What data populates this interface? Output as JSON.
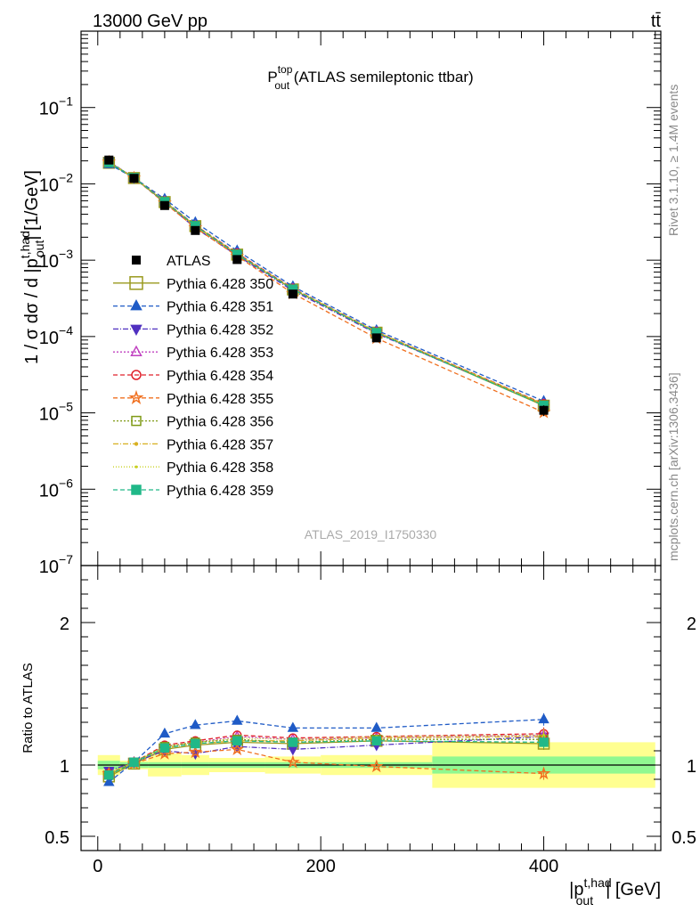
{
  "header": {
    "energy_label": "13000 GeV pp",
    "process_label": "tt̄"
  },
  "side_labels": {
    "rivet": "Rivet 3.1.10, ≥ 1.4M events",
    "mcplots": "mcplots.cern.ch [arXiv:1306.3436]"
  },
  "analysis_id": "ATLAS_2019_I1750330",
  "chart_data": [
    {
      "type": "scatter",
      "title": {
        "main": "P",
        "sup": "top",
        "sub": "out",
        "rest": " (ATLAS semileptonic ttbar)"
      },
      "ylabel": {
        "pre": "1 / σ dσ / d |p",
        "sup": "t,had",
        "sub": "out",
        "post": "| [1/GeV]"
      },
      "yscale": "log",
      "ylim": [
        1e-07,
        1
      ],
      "xlim": [
        -15,
        505
      ],
      "x_ticks": [
        0,
        200,
        400
      ],
      "y_tick_labels": [
        {
          "base": "10",
          "exp": "−1"
        },
        {
          "base": "10",
          "exp": "−2"
        },
        {
          "base": "10",
          "exp": "−3"
        },
        {
          "base": "10",
          "exp": "−4"
        },
        {
          "base": "10",
          "exp": "−5"
        },
        {
          "base": "10",
          "exp": "−6"
        },
        {
          "base": "10",
          "exp": "−7"
        }
      ],
      "y_tick_exponents": [
        -1,
        -2,
        -3,
        -4,
        -5,
        -6,
        -7
      ],
      "x": [
        10,
        32.5,
        60,
        87.5,
        125,
        175,
        250,
        400
      ],
      "bin_edges": [
        0,
        20,
        45,
        75,
        100,
        150,
        200,
        300,
        500
      ],
      "legend_position": "left-middle",
      "data": {
        "name": "ATLAS",
        "values": [
          0.0205,
          0.0118,
          0.0052,
          0.00245,
          0.00102,
          0.00036,
          9.6e-05,
          1.08e-05
        ],
        "err_stat": [
          0.03,
          0.02,
          0.02,
          0.02,
          0.02,
          0.02,
          0.02,
          0.06
        ],
        "err_total": [
          0.07,
          0.03,
          0.08,
          0.07,
          0.05,
          0.06,
          0.07,
          0.16
        ]
      },
      "series": [
        {
          "name": "Pythia 6.428 350",
          "color": "#9a9a1e",
          "marker": "square-open",
          "dash": "",
          "ratio": [
            0.92,
            1.01,
            1.11,
            1.14,
            1.16,
            1.15,
            1.17,
            1.15
          ]
        },
        {
          "name": "Pythia 6.428 351",
          "color": "#1f5bc6",
          "marker": "triangle-up",
          "dash": "5,3",
          "ratio": [
            0.88,
            1.02,
            1.22,
            1.28,
            1.31,
            1.26,
            1.26,
            1.32
          ]
        },
        {
          "name": "Pythia 6.428 352",
          "color": "#5030c0",
          "marker": "triangle-down",
          "dash": "6,2,1,2",
          "ratio": [
            0.96,
            1.02,
            1.1,
            1.08,
            1.13,
            1.11,
            1.14,
            1.2
          ]
        },
        {
          "name": "Pythia 6.428 353",
          "color": "#c040c0",
          "marker": "triangle-open",
          "dash": "2,2",
          "ratio": [
            0.94,
            1.02,
            1.13,
            1.16,
            1.2,
            1.18,
            1.19,
            1.21
          ]
        },
        {
          "name": "Pythia 6.428 354",
          "color": "#e0202a",
          "marker": "circle-open",
          "dash": "5,3",
          "ratio": [
            0.94,
            1.02,
            1.14,
            1.17,
            1.21,
            1.19,
            1.2,
            1.22
          ]
        },
        {
          "name": "Pythia 6.428 355",
          "color": "#f07020",
          "marker": "star-open",
          "dash": "5,3",
          "ratio": [
            0.94,
            1.01,
            1.08,
            1.09,
            1.11,
            1.02,
            0.99,
            0.94
          ]
        },
        {
          "name": "Pythia 6.428 356",
          "color": "#7f9a16",
          "marker": "square-open",
          "dash": "2,2",
          "ratio": [
            0.93,
            1.02,
            1.13,
            1.16,
            1.18,
            1.16,
            1.18,
            1.18
          ]
        },
        {
          "name": "Pythia 6.428 357",
          "color": "#d8b020",
          "marker": "dot",
          "dash": "6,2,1,2",
          "ratio": [
            0.94,
            1.02,
            1.12,
            1.15,
            1.17,
            1.17,
            1.19,
            1.2
          ]
        },
        {
          "name": "Pythia 6.428 358",
          "color": "#c8d020",
          "marker": "dot-small",
          "dash": "1,2",
          "ratio": [
            0.94,
            1.02,
            1.13,
            1.16,
            1.19,
            1.18,
            1.2,
            1.21
          ]
        },
        {
          "name": "Pythia 6.428 359",
          "color": "#20b888",
          "marker": "square",
          "dash": "5,3",
          "ratio": [
            0.93,
            1.02,
            1.12,
            1.15,
            1.17,
            1.16,
            1.17,
            1.16
          ]
        }
      ]
    },
    {
      "type": "scatter",
      "ylabel": "Ratio to ATLAS",
      "xlabel": {
        "pre": "|p",
        "sup": "t,had",
        "sub": "out",
        "post": "| [GeV]"
      },
      "ylim": [
        0.4,
        2.4
      ],
      "xlim": [
        -15,
        505
      ],
      "y_ticks": [
        0.5,
        1,
        2
      ],
      "y_tick_labels": [
        "0.5",
        "1",
        "2"
      ],
      "x_ticks": [
        0,
        200,
        400
      ],
      "x_tick_labels": [
        "0",
        "200",
        "400"
      ],
      "band_colors": {
        "stat": "#90f890",
        "total": "#ffff90"
      }
    }
  ]
}
